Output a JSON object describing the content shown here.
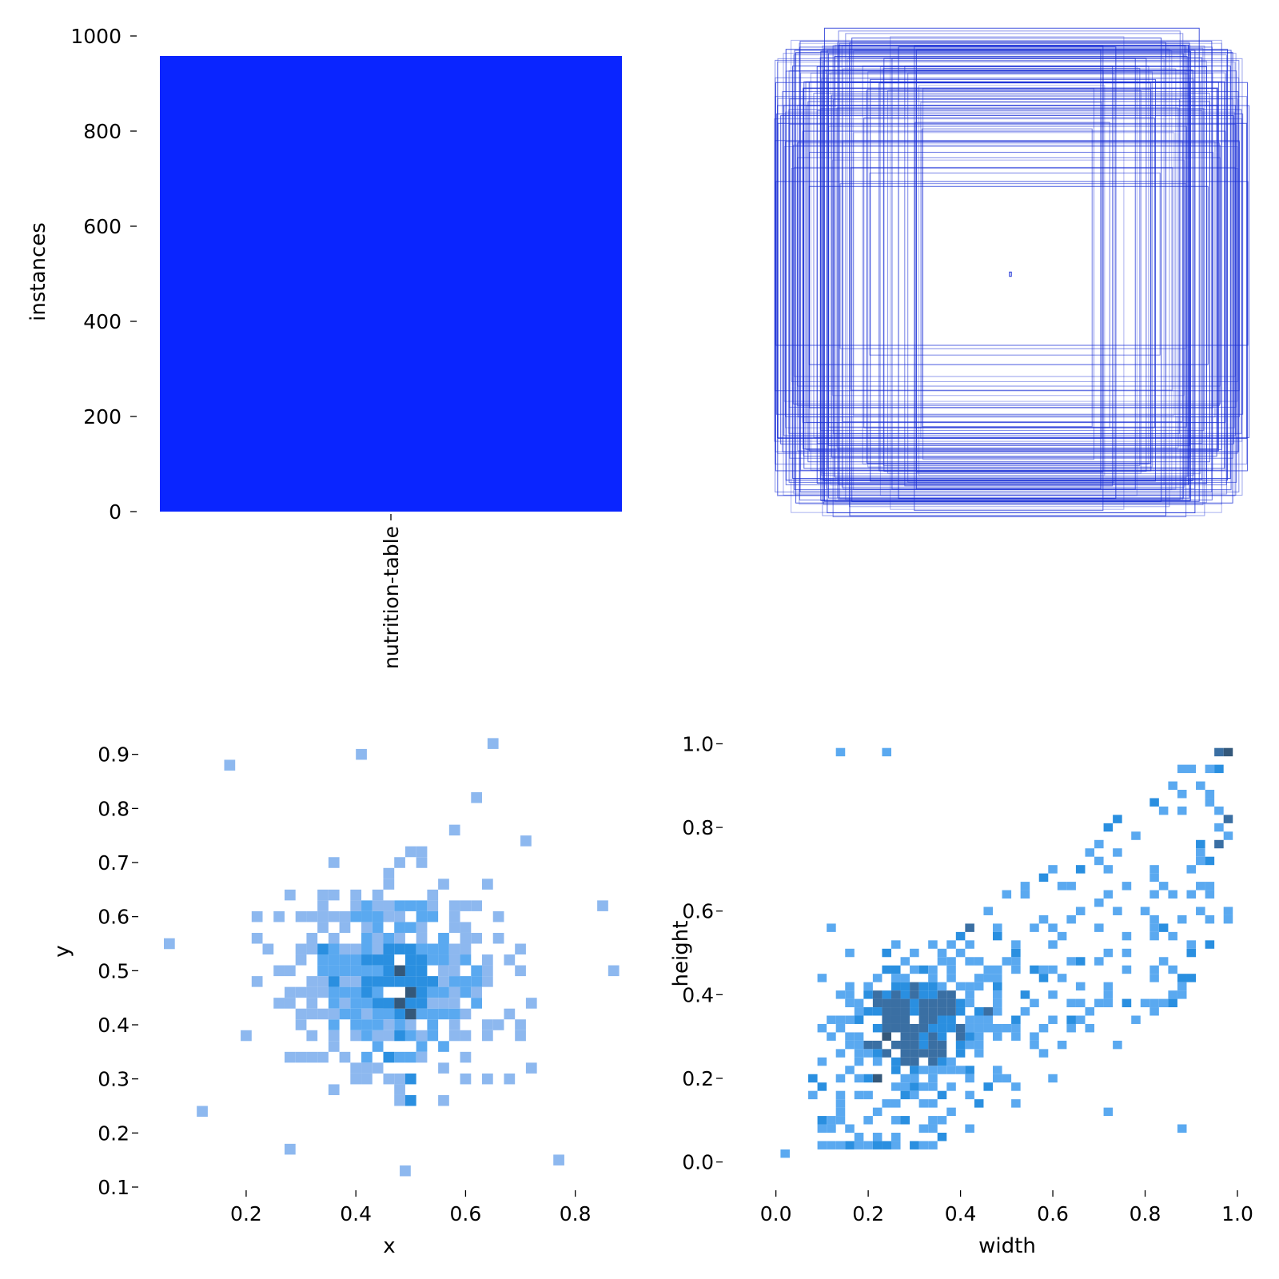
{
  "chart_data": [
    {
      "type": "bar",
      "categories": [
        "nutrition-table"
      ],
      "values": [
        958
      ],
      "ylabel": "instances",
      "xlabel": "",
      "ylim": [
        0,
        1000
      ],
      "yticks": [
        0,
        200,
        400,
        600,
        800,
        1000
      ],
      "grid": false,
      "colors": {
        "bar": "#0a25ff"
      }
    },
    {
      "type": "boxes",
      "description_kind": "overlaid label boxes centered on the image",
      "box_count": 120,
      "smallest_box": [
        0.01,
        0.015
      ],
      "colors": {
        "stroke": "#1a2fd6"
      }
    },
    {
      "type": "heatmap",
      "xlabel": "x",
      "ylabel": "y",
      "xlim": [
        0.05,
        0.885
      ],
      "ylim": [
        0.1,
        0.935
      ],
      "xticks": [
        0.2,
        0.4,
        0.6,
        0.8
      ],
      "yticks": [
        0.1,
        0.2,
        0.3,
        0.4,
        0.5,
        0.6,
        0.7,
        0.8,
        0.9
      ],
      "bin_width": 0.02,
      "grid": false,
      "colors": {
        "low": "#8db8ef",
        "mid": "#5aa9f0",
        "high": "#2a8fe0",
        "max": "#34587a"
      },
      "center": [
        0.48,
        0.48
      ],
      "spread": [
        0.14,
        0.14
      ],
      "cell_count": 420,
      "bins": [
        [
          0.48,
          0.5,
          4
        ],
        [
          0.48,
          0.44,
          4
        ],
        [
          0.5,
          0.42,
          4
        ],
        [
          0.48,
          0.38,
          3
        ],
        [
          0.46,
          0.5,
          3
        ],
        [
          0.5,
          0.3,
          3
        ],
        [
          0.5,
          0.46,
          4
        ],
        [
          0.42,
          0.52,
          3
        ],
        [
          0.36,
          0.48,
          3
        ],
        [
          0.34,
          0.54,
          3
        ],
        [
          0.5,
          0.26,
          3
        ],
        [
          0.46,
          0.34,
          3
        ],
        [
          0.65,
          0.92,
          1
        ],
        [
          0.17,
          0.88,
          1
        ],
        [
          0.41,
          0.9,
          1
        ],
        [
          0.06,
          0.55,
          1
        ],
        [
          0.85,
          0.62,
          1
        ],
        [
          0.87,
          0.5,
          1
        ],
        [
          0.49,
          0.13,
          1
        ],
        [
          0.77,
          0.15,
          1
        ],
        [
          0.28,
          0.17,
          1
        ],
        [
          0.62,
          0.82,
          1
        ],
        [
          0.71,
          0.74,
          1
        ],
        [
          0.12,
          0.24,
          1
        ]
      ]
    },
    {
      "type": "heatmap",
      "xlabel": "width",
      "ylabel": "height",
      "xlim": [
        -0.06,
        1.0
      ],
      "ylim": [
        -0.06,
        1.02
      ],
      "xticks": [
        0.0,
        0.2,
        0.4,
        0.6,
        0.8,
        1.0
      ],
      "yticks": [
        0.0,
        0.2,
        0.4,
        0.6,
        0.8,
        1.0
      ],
      "bin_width": 0.02,
      "grid": false,
      "colors": {
        "low": "#5aa9f0",
        "mid": "#2a8fe0",
        "high": "#3a6fa3",
        "max": "#34587a"
      },
      "cell_count": 560,
      "bins": [
        [
          0.98,
          0.98,
          4
        ],
        [
          0.96,
          0.76,
          3
        ],
        [
          0.98,
          0.82,
          3
        ],
        [
          0.96,
          0.98,
          3
        ],
        [
          0.24,
          0.3,
          4
        ],
        [
          0.22,
          0.2,
          4
        ],
        [
          0.3,
          0.3,
          3
        ],
        [
          0.34,
          0.34,
          3
        ],
        [
          0.28,
          0.38,
          3
        ],
        [
          0.42,
          0.56,
          3
        ],
        [
          0.46,
          0.36,
          3
        ],
        [
          0.02,
          0.02,
          1
        ],
        [
          0.88,
          0.08,
          1
        ],
        [
          0.72,
          0.12,
          1
        ],
        [
          0.12,
          0.56,
          1
        ],
        [
          0.14,
          0.98,
          1
        ],
        [
          0.24,
          0.98,
          1
        ],
        [
          0.08,
          0.16,
          1
        ],
        [
          0.14,
          0.14,
          1
        ],
        [
          0.34,
          0.08,
          1
        ]
      ]
    }
  ]
}
